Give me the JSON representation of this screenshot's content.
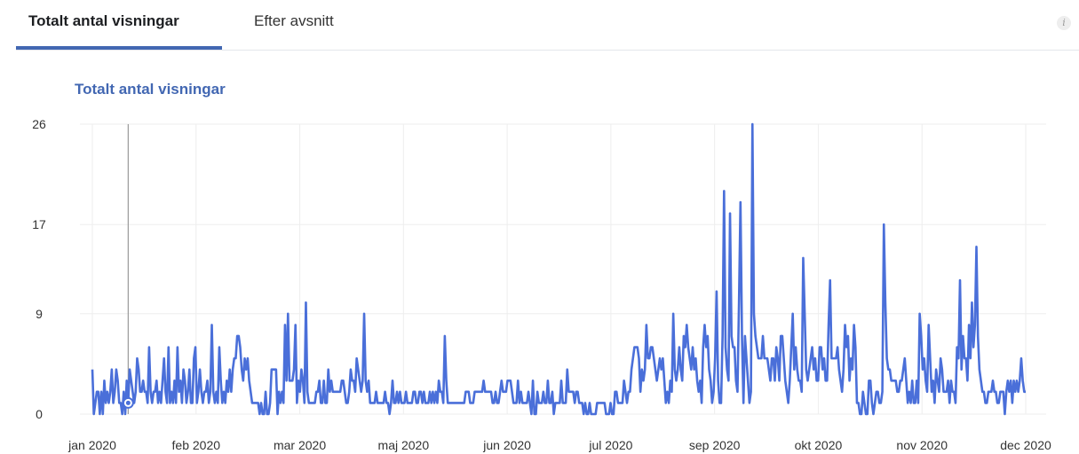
{
  "tabs": {
    "active_label": "Totalt antal visningar",
    "inactive_label": "Efter avsnitt",
    "info_icon": "i"
  },
  "colors": {
    "accent": "#4267b2",
    "line": "#4a6fd9",
    "grid": "#eeeeee"
  },
  "chart_data": {
    "type": "line",
    "title": "Totalt antal visningar",
    "xlabel": "",
    "ylabel": "",
    "ylim": [
      0,
      26
    ],
    "yticks": [
      0,
      9,
      17,
      26
    ],
    "xticks": [
      "jan 2020",
      "feb 2020",
      "mar 2020",
      "maj 2020",
      "jun 2020",
      "jul 2020",
      "sep 2020",
      "okt 2020",
      "nov 2020",
      "dec 2020"
    ],
    "grid": true,
    "highlight_index": 24,
    "series": [
      {
        "values": [
          4,
          0,
          1,
          2,
          2,
          0,
          2,
          0,
          3,
          1,
          2,
          1,
          2,
          4,
          1,
          2,
          4,
          3,
          1,
          1,
          0,
          2,
          0,
          3,
          1,
          4,
          3,
          2,
          1,
          2,
          5,
          4,
          2,
          2,
          3,
          2,
          2,
          1,
          6,
          2,
          1,
          2,
          2,
          3,
          1,
          2,
          1,
          3,
          5,
          2,
          1,
          6,
          1,
          2,
          1,
          3,
          1,
          6,
          2,
          3,
          1,
          4,
          3,
          1,
          2,
          4,
          1,
          1,
          5,
          6,
          1,
          2,
          4,
          2,
          1,
          2,
          2,
          3,
          1,
          2,
          8,
          2,
          1,
          2,
          1,
          6,
          3,
          1,
          2,
          1,
          3,
          2,
          4,
          2,
          4,
          5,
          5,
          7,
          7,
          6,
          4,
          3,
          5,
          4,
          5,
          3,
          2,
          1,
          1,
          1,
          1,
          1,
          0,
          1,
          0,
          0,
          2,
          0,
          0,
          1,
          4,
          4,
          4,
          4,
          0,
          2,
          1,
          2,
          1,
          8,
          3,
          9,
          3,
          3,
          3,
          4,
          8,
          1,
          3,
          2,
          4,
          3,
          1,
          10,
          2,
          1,
          1,
          1,
          1,
          1,
          2,
          2,
          3,
          1,
          1,
          3,
          1,
          1,
          4,
          2,
          3,
          2,
          2,
          2,
          2,
          2,
          2,
          3,
          3,
          2,
          1,
          1,
          2,
          4,
          3,
          3,
          2,
          5,
          4,
          3,
          2,
          3,
          9,
          3,
          2,
          3,
          1,
          1,
          1,
          1,
          2,
          1,
          1,
          1,
          1,
          1,
          2,
          1,
          1,
          0,
          1,
          3,
          1,
          1,
          2,
          1,
          2,
          1,
          1,
          1,
          2,
          1,
          1,
          1,
          1,
          2,
          2,
          1,
          1,
          2,
          2,
          1,
          2,
          1,
          1,
          1,
          2,
          1,
          2,
          1,
          2,
          1,
          3,
          2,
          2,
          1,
          7,
          3,
          1,
          1,
          1,
          1,
          1,
          1,
          1,
          1,
          1,
          1,
          1,
          1,
          2,
          2,
          2,
          1,
          1,
          1,
          2,
          2,
          2,
          2,
          2,
          2,
          3,
          2,
          2,
          2,
          2,
          2,
          1,
          1,
          2,
          1,
          1,
          2,
          3,
          2,
          2,
          2,
          3,
          3,
          3,
          2,
          1,
          1,
          1,
          3,
          1,
          2,
          1,
          1,
          1,
          1,
          2,
          1,
          0,
          3,
          0,
          0,
          2,
          1,
          1,
          1,
          2,
          1,
          1,
          3,
          1,
          1,
          2,
          0,
          1,
          1,
          1,
          1,
          3,
          1,
          1,
          1,
          4,
          2,
          2,
          2,
          2,
          1,
          2,
          2,
          1,
          1,
          1,
          0,
          1,
          0,
          0,
          1,
          0,
          0,
          0,
          0,
          1,
          1,
          1,
          1,
          1,
          1,
          0,
          0,
          0,
          1,
          0,
          0,
          2,
          2,
          1,
          1,
          1,
          1,
          3,
          2,
          1,
          2,
          2,
          4,
          5,
          6,
          6,
          6,
          5,
          2,
          4,
          3,
          4,
          8,
          5,
          5,
          6,
          6,
          5,
          4,
          3,
          4,
          5,
          4,
          5,
          3,
          1,
          2,
          1,
          3,
          2,
          9,
          4,
          3,
          4,
          6,
          4,
          3,
          7,
          6,
          8,
          6,
          5,
          4,
          6,
          4,
          5,
          3,
          2,
          3,
          1,
          6,
          8,
          6,
          7,
          4,
          3,
          1,
          2,
          5,
          11,
          3,
          1,
          1,
          7,
          20,
          6,
          4,
          3,
          18,
          7,
          6,
          6,
          3,
          2,
          10,
          19,
          7,
          1,
          7,
          5,
          3,
          1,
          2,
          26,
          9,
          7,
          6,
          5,
          5,
          5,
          7,
          5,
          5,
          5,
          4,
          3,
          5,
          5,
          3,
          6,
          5,
          3,
          7,
          7,
          5,
          3,
          2,
          1,
          3,
          6,
          9,
          4,
          6,
          4,
          3,
          3,
          2,
          14,
          9,
          4,
          3,
          4,
          5,
          6,
          4,
          5,
          3,
          3,
          6,
          6,
          4,
          5,
          3,
          3,
          8,
          12,
          5,
          5,
          5,
          5,
          6,
          4,
          3,
          2,
          4,
          8,
          6,
          7,
          3,
          5,
          4,
          8,
          6,
          1,
          1,
          0,
          0,
          2,
          1,
          0,
          0,
          3,
          3,
          1,
          0,
          1,
          2,
          2,
          1,
          1,
          2,
          17,
          10,
          5,
          4,
          4,
          3,
          3,
          3,
          3,
          2,
          2,
          3,
          3,
          4,
          5,
          3,
          1,
          2,
          1,
          3,
          1,
          1,
          3,
          1,
          9,
          7,
          4,
          5,
          3,
          2,
          8,
          5,
          2,
          3,
          1,
          4,
          3,
          2,
          5,
          4,
          2,
          2,
          2,
          3,
          1,
          3,
          2,
          2,
          1,
          6,
          5,
          12,
          4,
          7,
          5,
          5,
          3,
          8,
          5,
          10,
          6,
          8,
          15,
          7,
          4,
          3,
          2,
          2,
          1,
          1,
          2,
          2,
          2,
          3,
          2,
          2,
          1,
          1,
          2,
          2,
          2,
          0,
          2,
          3,
          2,
          3,
          1,
          3,
          2,
          3,
          2,
          3,
          5,
          3,
          2,
          2
        ]
      }
    ]
  }
}
